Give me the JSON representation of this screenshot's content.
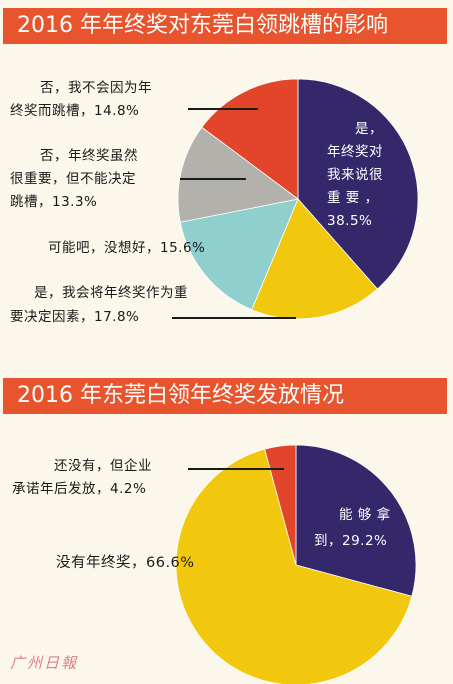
{
  "chart_data": [
    {
      "type": "pie",
      "title": "2016 年年终奖对东莞白领跳槽的影响",
      "slices": [
        {
          "label": "是，年终奖对我来说很重要，38.5%",
          "value": 38.5,
          "color": "#35286a"
        },
        {
          "label": "是，我会将年终奖作为重要决定因素，17.8%",
          "value": 17.8,
          "color": "#f2c80f"
        },
        {
          "label": "可能吧，没想好，15.6%",
          "value": 15.6,
          "color": "#8fd0cf"
        },
        {
          "label": "否，年终奖虽然很重要，但不能决定跳槽，13.3%",
          "value": 13.3,
          "color": "#b3b1ab"
        },
        {
          "label": "否，我不会因为年终奖而跳槽，14.8%",
          "value": 14.8,
          "color": "#e3452a"
        }
      ]
    },
    {
      "type": "pie",
      "title": "2016 年东莞白领年终奖发放情况",
      "slices": [
        {
          "label": "能够拿到，29.2%",
          "value": 29.2,
          "color": "#35286a"
        },
        {
          "label": "没有年终奖，66.6%",
          "value": 66.6,
          "color": "#f2c80f"
        },
        {
          "label": "还没有，但企业承诺年后发放，4.2%",
          "value": 4.2,
          "color": "#e3452a"
        }
      ]
    }
  ],
  "labels1": {
    "yes_line1": "是，",
    "yes_line2": "年终奖对",
    "yes_line3": "我来说很",
    "yes_line4": "重 要 ，",
    "yes_line5": "38.5%",
    "no1_line1": "否，我不会因为年",
    "no1_line2": "终奖而跳槽，14.8%",
    "no2_line1": "否，年终奖虽然",
    "no2_line2": "很重要，但不能决定",
    "no2_line3": "跳槽，13.3%",
    "maybe": "可能吧，没想好，15.6%",
    "yes2_line1": "是，我会将年终奖作为重",
    "yes2_line2": "要决定因素，17.8%"
  },
  "labels2": {
    "get_line1": "能 够 拿",
    "get_line2": "到，29.2%",
    "later_line1": "还没有，但企业",
    "later_line2": "承诺年后发放，4.2%",
    "none": "没有年终奖，66.6%"
  },
  "watermark": "广州日报"
}
